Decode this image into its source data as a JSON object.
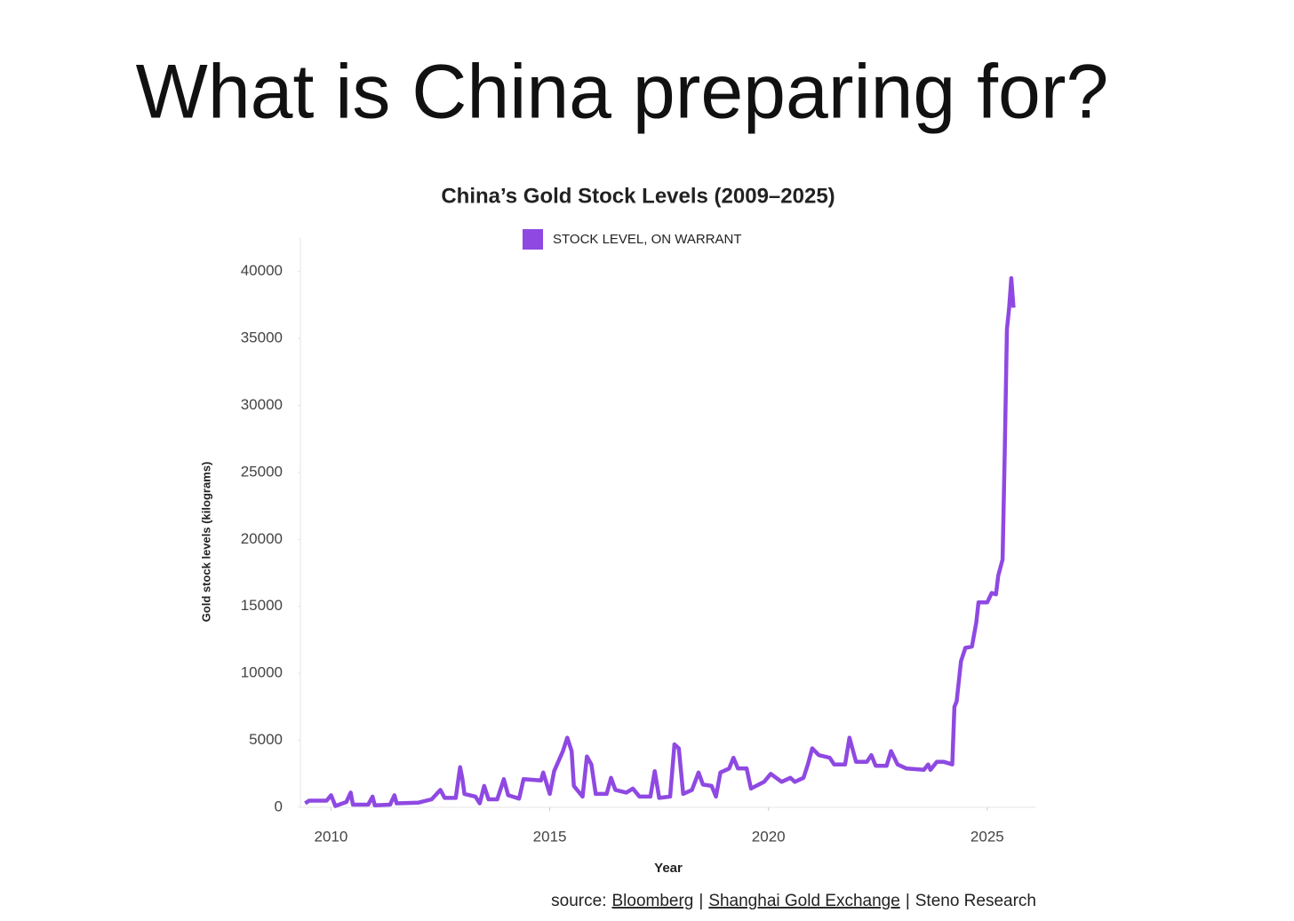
{
  "page_title": "What is China preparing for?",
  "chart_data": {
    "type": "line",
    "title": "China’s Gold Stock Levels (2009–2025)",
    "x_label": "Year",
    "y_label": "Gold stock levels (kilograms)",
    "legend": "top",
    "grid": false,
    "xlim": [
      2009.3,
      2026.1
    ],
    "ylim": [
      0,
      42500
    ],
    "xticks": [
      2010,
      2015,
      2020,
      2025
    ],
    "yticks": [
      0,
      5000,
      10000,
      15000,
      20000,
      25000,
      30000,
      35000,
      40000
    ],
    "x": [
      2009.41,
      2009.5,
      2009.9,
      2010.0,
      2010.1,
      2010.35,
      2010.45,
      2010.5,
      2010.85,
      2010.95,
      2011.0,
      2011.35,
      2011.45,
      2011.5,
      2012.0,
      2012.3,
      2012.5,
      2012.6,
      2012.85,
      2012.95,
      2013.0,
      2013.05,
      2013.3,
      2013.4,
      2013.5,
      2013.6,
      2013.8,
      2013.95,
      2014.05,
      2014.3,
      2014.4,
      2014.8,
      2014.85,
      2015.0,
      2015.1,
      2015.3,
      2015.4,
      2015.5,
      2015.55,
      2015.75,
      2015.85,
      2015.95,
      2016.05,
      2016.3,
      2016.4,
      2016.5,
      2016.75,
      2016.9,
      2017.05,
      2017.3,
      2017.4,
      2017.5,
      2017.75,
      2017.85,
      2017.95,
      2018.05,
      2018.25,
      2018.4,
      2018.5,
      2018.7,
      2018.8,
      2018.9,
      2019.1,
      2019.2,
      2019.3,
      2019.5,
      2019.6,
      2019.9,
      2020.05,
      2020.3,
      2020.5,
      2020.6,
      2020.8,
      2020.9,
      2021.0,
      2021.15,
      2021.4,
      2021.5,
      2021.75,
      2021.85,
      2022.0,
      2022.25,
      2022.35,
      2022.45,
      2022.7,
      2022.8,
      2022.95,
      2023.15,
      2023.55,
      2023.65,
      2023.7,
      2023.85,
      2024.0,
      2024.2,
      2024.25,
      2024.3,
      2024.4,
      2024.5,
      2024.65,
      2024.75,
      2024.8,
      2025.0,
      2025.1,
      2025.2,
      2025.25,
      2025.35,
      2025.4,
      2025.45,
      2025.5,
      2025.55,
      2025.6
    ],
    "series": [
      {
        "name": "STOCK LEVEL, ON WARRANT",
        "color": "#8f49e2",
        "values": [
          300,
          500,
          500,
          900,
          100,
          400,
          1100,
          200,
          200,
          800,
          150,
          200,
          900,
          300,
          350,
          600,
          1300,
          700,
          700,
          3000,
          2200,
          1000,
          800,
          300,
          1600,
          600,
          600,
          2100,
          900,
          650,
          2100,
          2000,
          2600,
          1000,
          2700,
          4200,
          5200,
          4200,
          1600,
          800,
          3800,
          3200,
          1000,
          1000,
          2200,
          1300,
          1100,
          1400,
          800,
          800,
          2700,
          700,
          800,
          4700,
          4400,
          1000,
          1300,
          2600,
          1700,
          1600,
          800,
          2600,
          2900,
          3700,
          2900,
          2900,
          1400,
          1900,
          2500,
          1900,
          2200,
          1900,
          2200,
          3200,
          4400,
          3900,
          3700,
          3200,
          3200,
          5200,
          3400,
          3400,
          3900,
          3100,
          3100,
          4200,
          3200,
          2900,
          2800,
          3200,
          2800,
          3400,
          3400,
          3200,
          7500,
          7900,
          10900,
          11900,
          12000,
          13800,
          15300,
          15300,
          16000,
          15900,
          17300,
          18500,
          26400,
          35700,
          37300,
          39500,
          37300
        ]
      }
    ],
    "source_label": "source:",
    "sources": [
      "Bloomberg",
      "Shanghai Gold Exchange",
      "Steno Research"
    ],
    "source_links": [
      true,
      true,
      false
    ],
    "source_separator": "|"
  }
}
